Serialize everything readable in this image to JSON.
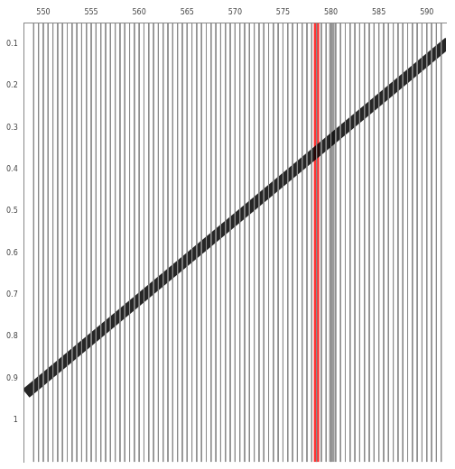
{
  "chart_data": {
    "type": "seismic_gather",
    "xlim": [
      548,
      592
    ],
    "xticks": [
      550,
      555,
      560,
      565,
      570,
      575,
      580,
      585,
      590
    ],
    "ylim": [
      0.05,
      1.1
    ],
    "yticks": [
      0.1,
      0.2,
      0.3,
      0.4,
      0.5,
      0.6,
      0.7,
      0.8,
      0.9,
      1.0
    ],
    "grid": false,
    "traces": [
      549,
      549.5,
      550,
      550.5,
      551,
      551.5,
      552,
      552.5,
      553,
      553.5,
      554,
      554.5,
      555,
      555.5,
      556,
      556.5,
      557,
      557.5,
      558,
      558.5,
      559,
      559.5,
      560,
      560.5,
      561,
      561.5,
      562,
      562.5,
      563,
      563.5,
      564,
      564.5,
      565,
      565.5,
      566,
      566.5,
      567,
      567.5,
      568,
      568.5,
      569,
      569.5,
      570,
      570.5,
      571,
      571.5,
      572,
      572.5,
      573,
      573.5,
      574,
      574.5,
      575,
      575.5,
      576,
      576.5,
      577,
      577.5,
      578,
      578.5,
      579,
      579.5,
      580,
      580.5,
      581,
      581.5,
      582,
      582.5,
      583,
      583.5,
      584,
      584.5,
      585,
      585.5,
      586,
      586.5,
      587,
      587.5,
      588,
      588.5,
      589,
      589.5,
      590,
      590.5,
      591,
      591.5
    ],
    "first_break": {
      "x": [
        548.2,
        592.3
      ],
      "y": [
        0.936,
        0.095
      ]
    },
    "markers": [
      {
        "x": 578.5,
        "color": "#ff3333"
      },
      {
        "x": 580.1,
        "color": "#9a9a9a"
      }
    ]
  }
}
